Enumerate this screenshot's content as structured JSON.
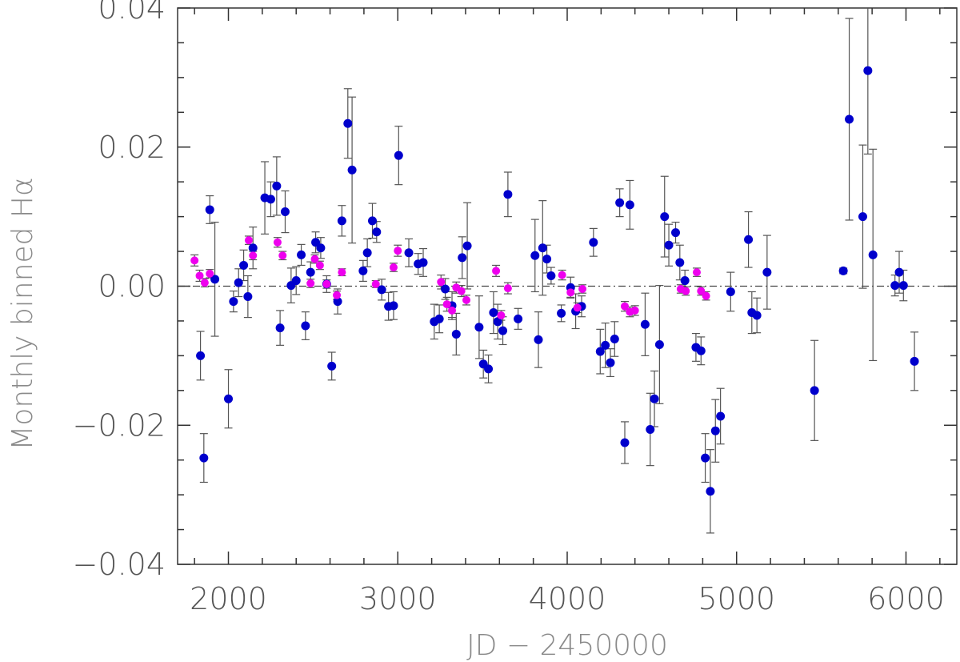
{
  "chart_data": {
    "type": "scatter",
    "xlabel": "JD − 2450000",
    "ylabel": "Monthly binned Hα",
    "xlim": [
      1700,
      6300
    ],
    "ylim": [
      -0.04,
      0.04
    ],
    "x_ticks": [
      2000,
      3000,
      4000,
      5000,
      6000
    ],
    "y_ticks": [
      -0.04,
      -0.02,
      0.0,
      0.02,
      0.04
    ],
    "x_tick_labels": [
      "2000",
      "3000",
      "4000",
      "5000",
      "6000"
    ],
    "y_tick_labels": [
      "−0.04",
      "−0.02",
      "0.00",
      "0.02",
      "0.04"
    ],
    "reference_line": {
      "y": 0.0,
      "style": "dash-dot"
    },
    "grid": false,
    "series": [
      {
        "color": "#0000cc",
        "marker": "filled-circle",
        "points": [
          {
            "x": 1835,
            "y": -0.01,
            "err": 0.0035
          },
          {
            "x": 1855,
            "y": -0.0247,
            "err": 0.0035
          },
          {
            "x": 1890,
            "y": 0.011,
            "err": 0.002
          },
          {
            "x": 1920,
            "y": 0.001,
            "err": 0.0082
          },
          {
            "x": 2000,
            "y": -0.0162,
            "err": 0.0042
          },
          {
            "x": 2030,
            "y": -0.0022,
            "err": 0.0015
          },
          {
            "x": 2060,
            "y": 0.0005,
            "err": 0.002
          },
          {
            "x": 2090,
            "y": 0.003,
            "err": 0.0022
          },
          {
            "x": 2115,
            "y": -0.0015,
            "err": 0.003
          },
          {
            "x": 2145,
            "y": 0.0055,
            "err": 0.003
          },
          {
            "x": 2215,
            "y": 0.0127,
            "err": 0.0052
          },
          {
            "x": 2250,
            "y": 0.0125,
            "err": 0.0025
          },
          {
            "x": 2285,
            "y": 0.0144,
            "err": 0.0042
          },
          {
            "x": 2305,
            "y": -0.006,
            "err": 0.0025
          },
          {
            "x": 2335,
            "y": 0.0107,
            "err": 0.003
          },
          {
            "x": 2370,
            "y": 0.0001,
            "err": 0.0025
          },
          {
            "x": 2400,
            "y": 0.0008,
            "err": 0.002
          },
          {
            "x": 2430,
            "y": 0.0045,
            "err": 0.0015
          },
          {
            "x": 2455,
            "y": -0.0057,
            "err": 0.002
          },
          {
            "x": 2485,
            "y": 0.002,
            "err": 0.0015
          },
          {
            "x": 2515,
            "y": 0.0063,
            "err": 0.0015
          },
          {
            "x": 2545,
            "y": 0.0055,
            "err": 0.0015
          },
          {
            "x": 2580,
            "y": 0.0003,
            "err": 0.0012
          },
          {
            "x": 2610,
            "y": -0.0115,
            "err": 0.002
          },
          {
            "x": 2645,
            "y": -0.0022,
            "err": 0.0018
          },
          {
            "x": 2670,
            "y": 0.0094,
            "err": 0.0022
          },
          {
            "x": 2705,
            "y": 0.0234,
            "err": 0.005
          },
          {
            "x": 2730,
            "y": 0.0167,
            "err": 0.0105
          },
          {
            "x": 2795,
            "y": 0.0022,
            "err": 0.0015
          },
          {
            "x": 2820,
            "y": 0.0048,
            "err": 0.002
          },
          {
            "x": 2850,
            "y": 0.0094,
            "err": 0.0025
          },
          {
            "x": 2875,
            "y": 0.0078,
            "err": 0.0015
          },
          {
            "x": 2905,
            "y": -0.0005,
            "err": 0.0015
          },
          {
            "x": 2945,
            "y": -0.0029,
            "err": 0.002
          },
          {
            "x": 2975,
            "y": -0.0028,
            "err": 0.002
          },
          {
            "x": 3005,
            "y": 0.0188,
            "err": 0.0042
          },
          {
            "x": 3065,
            "y": 0.0048,
            "err": 0.002
          },
          {
            "x": 3120,
            "y": 0.0032,
            "err": 0.0015
          },
          {
            "x": 3150,
            "y": 0.0034,
            "err": 0.002
          },
          {
            "x": 3215,
            "y": -0.0051,
            "err": 0.0025
          },
          {
            "x": 3245,
            "y": -0.0047,
            "err": 0.002
          },
          {
            "x": 3280,
            "y": -0.0004,
            "err": 0.0015
          },
          {
            "x": 3320,
            "y": -0.0028,
            "err": 0.002
          },
          {
            "x": 3345,
            "y": -0.0069,
            "err": 0.003
          },
          {
            "x": 3380,
            "y": 0.0041,
            "err": 0.003
          },
          {
            "x": 3410,
            "y": 0.0058,
            "err": 0.0062
          },
          {
            "x": 3480,
            "y": -0.0059,
            "err": 0.0045
          },
          {
            "x": 3505,
            "y": -0.0112,
            "err": 0.002
          },
          {
            "x": 3535,
            "y": -0.0119,
            "err": 0.002
          },
          {
            "x": 3565,
            "y": -0.0038,
            "err": 0.003
          },
          {
            "x": 3590,
            "y": -0.0051,
            "err": 0.0025
          },
          {
            "x": 3620,
            "y": -0.0064,
            "err": 0.002
          },
          {
            "x": 3650,
            "y": 0.0132,
            "err": 0.0032
          },
          {
            "x": 3710,
            "y": -0.0047,
            "err": 0.0015
          },
          {
            "x": 3810,
            "y": 0.0044,
            "err": 0.0052
          },
          {
            "x": 3830,
            "y": -0.0077,
            "err": 0.004
          },
          {
            "x": 3855,
            "y": 0.0055,
            "err": 0.0068
          },
          {
            "x": 3880,
            "y": 0.0039,
            "err": 0.002
          },
          {
            "x": 3905,
            "y": 0.0015,
            "err": 0.0012
          },
          {
            "x": 3965,
            "y": -0.0039,
            "err": 0.0012
          },
          {
            "x": 4020,
            "y": -0.0002,
            "err": 0.0015
          },
          {
            "x": 4050,
            "y": -0.0036,
            "err": 0.0025
          },
          {
            "x": 4085,
            "y": -0.0029,
            "err": 0.0015
          },
          {
            "x": 4155,
            "y": 0.0063,
            "err": 0.002
          },
          {
            "x": 4195,
            "y": -0.0094,
            "err": 0.0032
          },
          {
            "x": 4225,
            "y": -0.0085,
            "err": 0.0032
          },
          {
            "x": 4255,
            "y": -0.011,
            "err": 0.002
          },
          {
            "x": 4280,
            "y": -0.0076,
            "err": 0.0025
          },
          {
            "x": 4310,
            "y": 0.012,
            "err": 0.002
          },
          {
            "x": 4340,
            "y": -0.0225,
            "err": 0.003
          },
          {
            "x": 4370,
            "y": 0.0117,
            "err": 0.0035
          },
          {
            "x": 4460,
            "y": -0.0055,
            "err": 0.0045
          },
          {
            "x": 4490,
            "y": -0.0206,
            "err": 0.0052
          },
          {
            "x": 4515,
            "y": -0.0162,
            "err": 0.004
          },
          {
            "x": 4545,
            "y": -0.0084,
            "err": 0.0085
          },
          {
            "x": 4575,
            "y": 0.01,
            "err": 0.0058
          },
          {
            "x": 4600,
            "y": 0.0059,
            "err": 0.003
          },
          {
            "x": 4640,
            "y": 0.0077,
            "err": 0.0015
          },
          {
            "x": 4665,
            "y": 0.0034,
            "err": 0.0025
          },
          {
            "x": 4695,
            "y": 0.0008,
            "err": 0.0015
          },
          {
            "x": 4760,
            "y": -0.0088,
            "err": 0.002
          },
          {
            "x": 4790,
            "y": -0.0093,
            "err": 0.002
          },
          {
            "x": 4815,
            "y": -0.0247,
            "err": 0.0035
          },
          {
            "x": 4845,
            "y": -0.0295,
            "err": 0.006
          },
          {
            "x": 4875,
            "y": -0.0208,
            "err": 0.0045
          },
          {
            "x": 4905,
            "y": -0.0187,
            "err": 0.004
          },
          {
            "x": 4965,
            "y": -0.0008,
            "err": 0.0028
          },
          {
            "x": 5070,
            "y": 0.0067,
            "err": 0.004
          },
          {
            "x": 5090,
            "y": -0.0038,
            "err": 0.003
          },
          {
            "x": 5120,
            "y": -0.0042,
            "err": 0.0025
          },
          {
            "x": 5180,
            "y": 0.002,
            "err": 0.0053
          },
          {
            "x": 5460,
            "y": -0.015,
            "err": 0.0072
          },
          {
            "x": 5630,
            "y": 0.0022,
            "err": 0.0004
          },
          {
            "x": 5665,
            "y": 0.024,
            "err": 0.0145
          },
          {
            "x": 5745,
            "y": 0.01,
            "err": 0.0103
          },
          {
            "x": 5775,
            "y": 0.031,
            "err": 0.012
          },
          {
            "x": 5805,
            "y": 0.0045,
            "err": 0.0152
          },
          {
            "x": 5935,
            "y": 0.0001,
            "err": 0.0015
          },
          {
            "x": 5960,
            "y": 0.002,
            "err": 0.003
          },
          {
            "x": 5985,
            "y": 0.0001,
            "err": 0.0022
          },
          {
            "x": 6050,
            "y": -0.0108,
            "err": 0.0042
          }
        ]
      },
      {
        "color": "#ee00ee",
        "marker": "filled-circle",
        "points": [
          {
            "x": 1800,
            "y": 0.0037,
            "err": 0.0008
          },
          {
            "x": 1830,
            "y": 0.0015,
            "err": 0.0008
          },
          {
            "x": 1860,
            "y": 0.0005,
            "err": 0.0006
          },
          {
            "x": 1890,
            "y": 0.0018,
            "err": 0.0006
          },
          {
            "x": 2120,
            "y": 0.0066,
            "err": 0.0006
          },
          {
            "x": 2145,
            "y": 0.0044,
            "err": 0.0006
          },
          {
            "x": 2290,
            "y": 0.0063,
            "err": 0.0007
          },
          {
            "x": 2320,
            "y": 0.0044,
            "err": 0.0006
          },
          {
            "x": 2485,
            "y": 0.0004,
            "err": 0.0006
          },
          {
            "x": 2510,
            "y": 0.0039,
            "err": 0.0006
          },
          {
            "x": 2540,
            "y": 0.003,
            "err": 0.0006
          },
          {
            "x": 2580,
            "y": 0.0003,
            "err": 0.0006
          },
          {
            "x": 2640,
            "y": -0.0013,
            "err": 0.0006
          },
          {
            "x": 2670,
            "y": 0.002,
            "err": 0.0005
          },
          {
            "x": 2870,
            "y": 0.0003,
            "err": 0.0005
          },
          {
            "x": 2975,
            "y": 0.0027,
            "err": 0.0006
          },
          {
            "x": 3000,
            "y": 0.0051,
            "err": 0.0008
          },
          {
            "x": 3255,
            "y": 0.0006,
            "err": 0.001
          },
          {
            "x": 3290,
            "y": -0.0026,
            "err": 0.001
          },
          {
            "x": 3320,
            "y": -0.0035,
            "err": 0.001
          },
          {
            "x": 3345,
            "y": -0.0002,
            "err": 0.0008
          },
          {
            "x": 3375,
            "y": -0.0007,
            "err": 0.0008
          },
          {
            "x": 3405,
            "y": -0.002,
            "err": 0.0007
          },
          {
            "x": 3580,
            "y": 0.0022,
            "err": 0.0008
          },
          {
            "x": 3610,
            "y": -0.0042,
            "err": 0.0007
          },
          {
            "x": 3650,
            "y": -0.0003,
            "err": 0.0008
          },
          {
            "x": 3970,
            "y": 0.0016,
            "err": 0.0007
          },
          {
            "x": 4020,
            "y": -0.0009,
            "err": 0.0007
          },
          {
            "x": 4060,
            "y": -0.0031,
            "err": 0.0007
          },
          {
            "x": 4090,
            "y": -0.0004,
            "err": 0.0006
          },
          {
            "x": 4340,
            "y": -0.0029,
            "err": 0.0007
          },
          {
            "x": 4370,
            "y": -0.0037,
            "err": 0.0007
          },
          {
            "x": 4400,
            "y": -0.0035,
            "err": 0.0007
          },
          {
            "x": 4670,
            "y": -0.0004,
            "err": 0.0006
          },
          {
            "x": 4700,
            "y": -0.0007,
            "err": 0.0006
          },
          {
            "x": 4765,
            "y": 0.002,
            "err": 0.0006
          },
          {
            "x": 4790,
            "y": -0.0007,
            "err": 0.0006
          },
          {
            "x": 4820,
            "y": -0.0014,
            "err": 0.0006
          }
        ]
      }
    ]
  }
}
